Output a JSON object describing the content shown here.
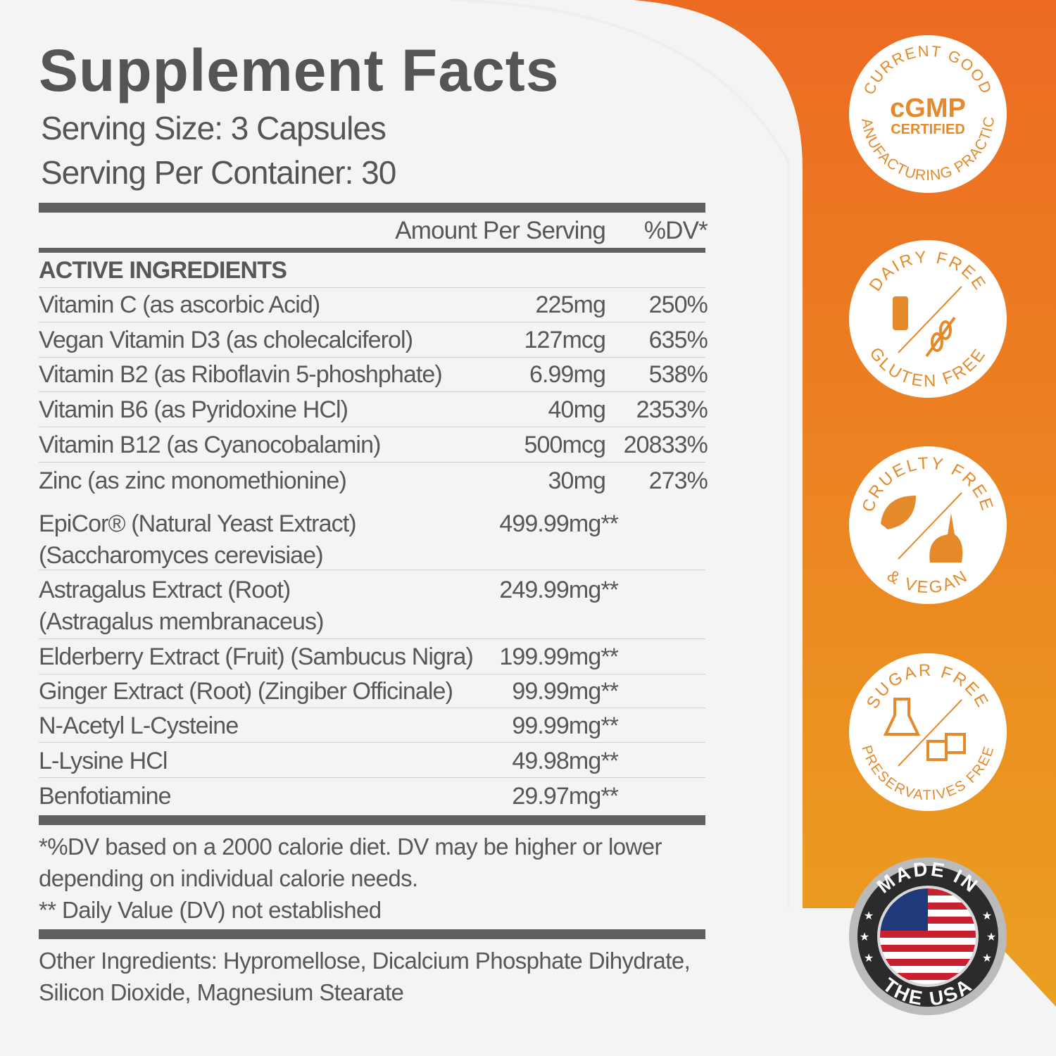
{
  "colors": {
    "orange_top": "#ec6a22",
    "orange_bottom": "#eba021",
    "text": "#575757",
    "bar": "#606060",
    "badge_text": "#e58a2a"
  },
  "panel": {
    "title": "Supplement Facts",
    "serving_size": "Serving Size: 3 Capsules",
    "servings_per_container": "Serving Per Container:  30",
    "col_amount": "Amount Per Serving",
    "col_dv": "%DV*",
    "section": "ACTIVE INGREDIENTS",
    "rows": [
      {
        "name": "Vitamin C (as ascorbic Acid)",
        "amount": "225mg",
        "dv": "250%"
      },
      {
        "name": "Vegan Vitamin D3 (as cholecalciferol)",
        "amount": "127mcg",
        "dv": "635%"
      },
      {
        "name": "Vitamin B2 (as Riboflavin 5-phoshphate)",
        "amount": "6.99mg",
        "dv": "538%"
      },
      {
        "name": "Vitamin B6 (as Pyridoxine HCl)",
        "amount": "40mg",
        "dv": "2353%"
      },
      {
        "name": "Vitamin B12 (as Cyanocobalamin)",
        "amount": "500mcg",
        "dv": "20833%"
      },
      {
        "name": "Zinc (as zinc monomethionine)",
        "amount": "30mg",
        "dv": "273%"
      }
    ],
    "blend": [
      {
        "name": "EpiCor® (Natural Yeast Extract)",
        "name2": "(Saccharomyces cerevisiae)",
        "amount": "499.99mg**"
      },
      {
        "name": "Astragalus Extract (Root)",
        "name2": "(Astragalus membranaceus)",
        "amount": "249.99mg**"
      },
      {
        "name": "Elderberry Extract (Fruit) (Sambucus Nigra)",
        "amount": "199.99mg**"
      },
      {
        "name": "Ginger Extract (Root) (Zingiber Officinale)",
        "amount": "99.99mg**"
      },
      {
        "name": "N-Acetyl L-Cysteine",
        "amount": "99.99mg**"
      },
      {
        "name": "L-Lysine HCl",
        "amount": "49.98mg**"
      },
      {
        "name": "Benfotiamine",
        "amount": "29.97mg**"
      }
    ],
    "footnote1": "*%DV based on a 2000 calorie diet. DV may be higher or lower",
    "footnote2": "depending on individual calorie needs.",
    "footnote3": "** Daily Value (DV) not established",
    "other1": "Other Ingredients: Hypromellose, Dicalcium Phosphate Dihydrate,",
    "other2": "Silicon Dioxide, Magnesium Stearate"
  },
  "badges": {
    "cgmp": {
      "top": "CURRENT GOOD",
      "bottom": "MANUFACTURING PRACTICE",
      "main": "cGMP",
      "sub": "CERTIFIED"
    },
    "dairy": {
      "top": "DAIRY FREE",
      "bottom": "GLUTEN FREE",
      "icons": [
        "milk-bottle-icon",
        "wheat-icon"
      ]
    },
    "cruelty": {
      "top": "CRUELTY FREE",
      "bottom": "& VEGAN",
      "icons": [
        "leaf-icon",
        "rabbit-icon"
      ]
    },
    "sugar": {
      "top": "SUGAR FREE",
      "bottom": "PRESERVATIVES FREE",
      "icons": [
        "flask-icon",
        "sugar-cubes-icon"
      ]
    },
    "usa": {
      "top": "MADE IN",
      "bottom": "THE USA",
      "icons": [
        "us-flag-icon",
        "star-icon"
      ]
    }
  }
}
